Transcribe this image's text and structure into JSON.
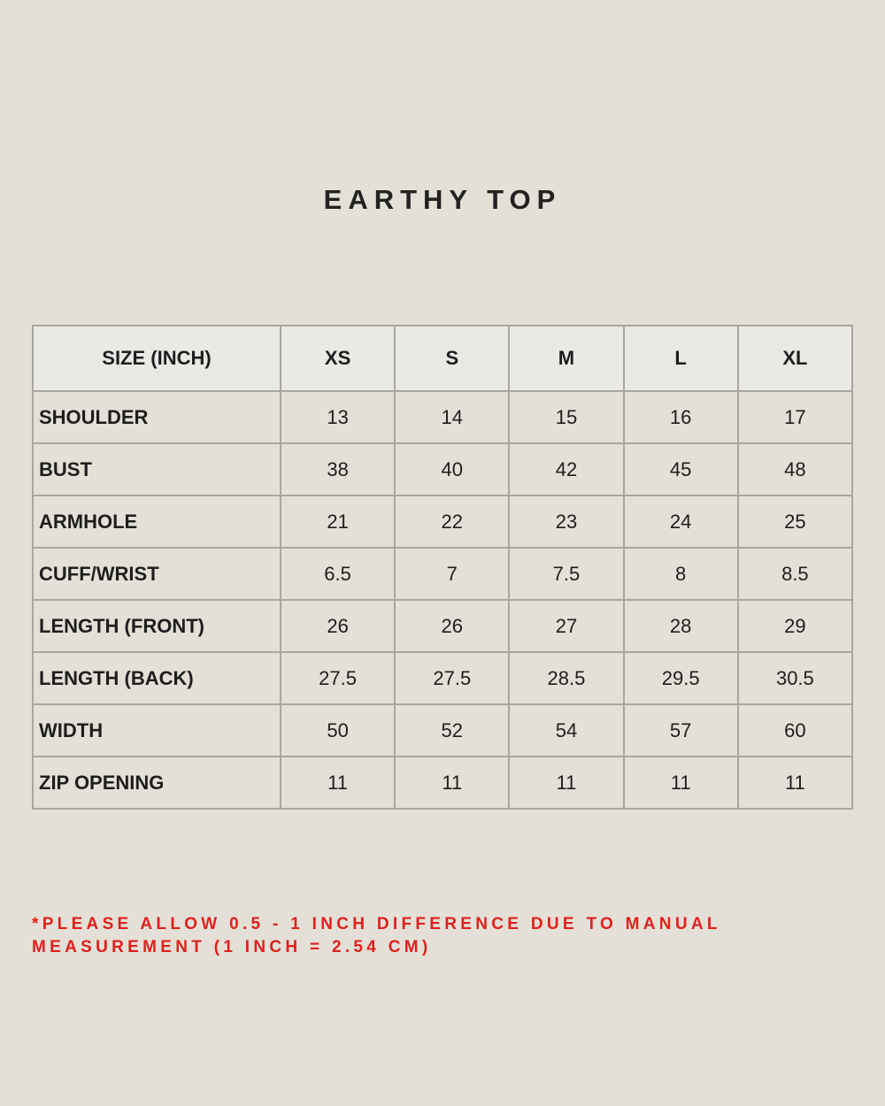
{
  "title": "EARTHY TOP",
  "table": {
    "headers": [
      "SIZE (INCH)",
      "XS",
      "S",
      "M",
      "L",
      "XL"
    ],
    "rows": [
      {
        "label": "SHOULDER",
        "values": [
          "13",
          "14",
          "15",
          "16",
          "17"
        ]
      },
      {
        "label": "BUST",
        "values": [
          "38",
          "40",
          "42",
          "45",
          "48"
        ]
      },
      {
        "label": "ARMHOLE",
        "values": [
          "21",
          "22",
          "23",
          "24",
          "25"
        ]
      },
      {
        "label": "CUFF/WRIST",
        "values": [
          "6.5",
          "7",
          "7.5",
          "8",
          "8.5"
        ]
      },
      {
        "label": "LENGTH (FRONT)",
        "values": [
          "26",
          "26",
          "27",
          "28",
          "29"
        ]
      },
      {
        "label": "LENGTH (BACK)",
        "values": [
          "27.5",
          "27.5",
          "28.5",
          "29.5",
          "30.5"
        ]
      },
      {
        "label": "WIDTH",
        "values": [
          "50",
          "52",
          "54",
          "57",
          "60"
        ]
      },
      {
        "label": "ZIP OPENING",
        "values": [
          "11",
          "11",
          "11",
          "11",
          "11"
        ]
      }
    ]
  },
  "note": {
    "line1": "*PLEASE ALLOW 0.5 - 1 INCH DIFFERENCE DUE TO MANUAL",
    "line2": "MEASUREMENT (1 INCH = 2.54 CM)"
  },
  "colors": {
    "background": "#e4e0d7",
    "header_bg": "#ebe9e5",
    "note": "#e0201c",
    "border": "#a9a6a1"
  }
}
